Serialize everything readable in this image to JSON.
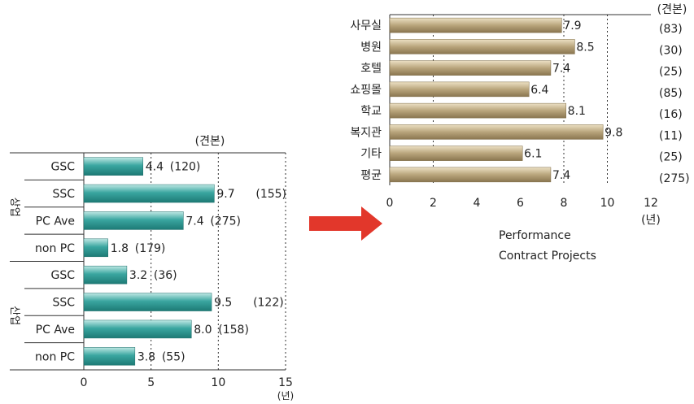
{
  "chart_data": [
    {
      "type": "bar",
      "orientation": "horizontal",
      "unit_note": "(견본)",
      "xlabel": "(년)",
      "xlim": [
        0,
        15
      ],
      "xticks": [
        0,
        5,
        10,
        15
      ],
      "grid": "vertical dotted at 5, 10, 15",
      "groups": [
        {
          "label": "상업",
          "start": 0,
          "end": 3
        },
        {
          "label": "산업",
          "start": 4,
          "end": 7
        }
      ],
      "categories": [
        "GSC",
        "SSC",
        "PC Ave",
        "non PC",
        "GSC",
        "SSC",
        "PC Ave",
        "non PC"
      ],
      "values": [
        4.4,
        9.7,
        7.4,
        1.8,
        3.2,
        9.5,
        8.0,
        3.8
      ],
      "value_labels": [
        "4.4",
        "9.7",
        "7.4",
        "1.8",
        "3.2",
        "9.5",
        "8.0",
        "3.8"
      ],
      "sample_labels": [
        "(120)",
        "(155)",
        "(275)",
        "(179)",
        "(36)",
        "(122)",
        "(158)",
        "(55)"
      ],
      "bar_color": "#3aa6a0"
    },
    {
      "type": "bar",
      "orientation": "horizontal",
      "unit_note": "(견본)",
      "xlabel": "(년)",
      "xlim": [
        0,
        12
      ],
      "xticks": [
        0,
        2,
        4,
        6,
        8,
        10,
        12
      ],
      "grid": "vertical dotted at 2, 8, 10",
      "categories": [
        "사무실",
        "병원",
        "호텔",
        "쇼핑몰",
        "학교",
        "복지관",
        "기타",
        "평균"
      ],
      "values": [
        7.9,
        8.5,
        7.4,
        6.4,
        8.1,
        9.8,
        6.1,
        7.4
      ],
      "value_labels": [
        "7.9",
        "8.5",
        "7.4",
        "6.4",
        "8.1",
        "9.8",
        "6.1",
        "7.4"
      ],
      "sample_labels": [
        "(83)",
        "(30)",
        "(25)",
        "(85)",
        "(16)",
        "(11)",
        "(25)",
        "(275)"
      ],
      "caption_lines": [
        "Performance",
        "Contract Projects"
      ],
      "bar_color": "#b9a57c"
    }
  ],
  "arrow_color": "#e2372b"
}
